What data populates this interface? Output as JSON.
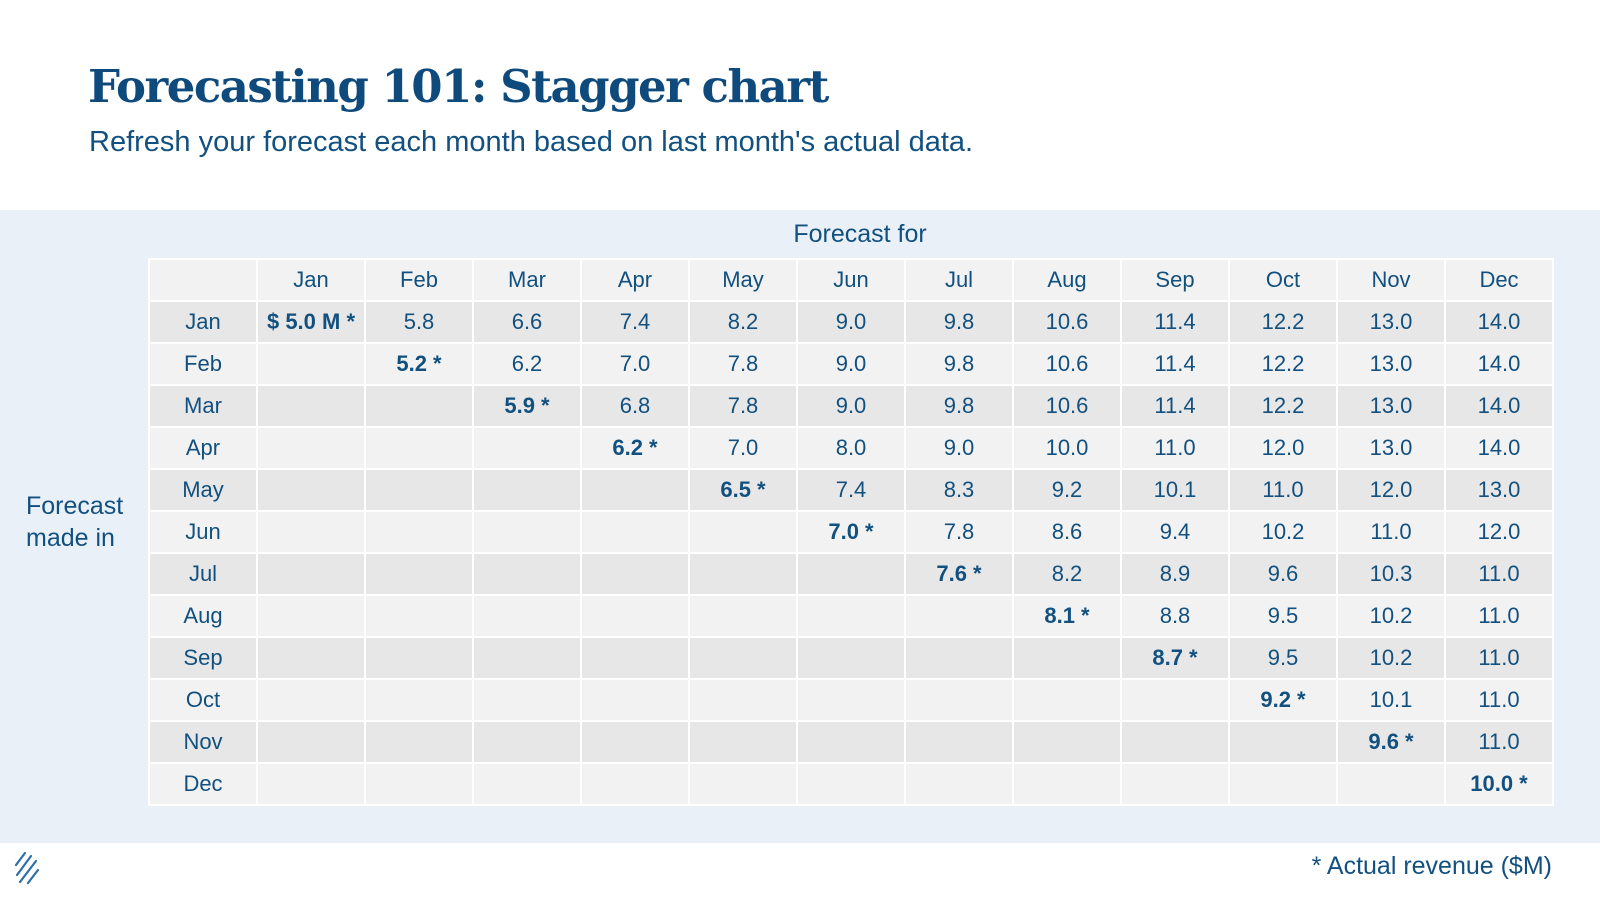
{
  "header": {
    "title": "Forecasting 101: Stagger chart",
    "subtitle": "Refresh your forecast each month based on last month's actual data."
  },
  "labels": {
    "column_axis": "Forecast for",
    "row_axis_line1": "Forecast",
    "row_axis_line2": "made in",
    "footnote": "* Actual revenue ($M)"
  },
  "colors": {
    "primary_text": "#12507f",
    "title": "#0f4a7c",
    "panel_bg": "#e9f0f8",
    "cell_light": "#f2f2f2",
    "cell_dark": "#e7e7e7"
  },
  "chart_data": {
    "type": "table",
    "title": "Forecasting 101: Stagger chart",
    "subtitle": "Refresh your forecast each month based on last month's actual data.",
    "column_header_label": "Forecast for",
    "row_header_label": "Forecast made in",
    "columns": [
      "Jan",
      "Feb",
      "Mar",
      "Apr",
      "May",
      "Jun",
      "Jul",
      "Aug",
      "Sep",
      "Oct",
      "Nov",
      "Dec"
    ],
    "rows": [
      {
        "label": "Jan",
        "cells": [
          "$ 5.0 M *",
          "5.8",
          "6.6",
          "7.4",
          "8.2",
          "9.0",
          "9.8",
          "10.6",
          "11.4",
          "12.2",
          "13.0",
          "14.0"
        ]
      },
      {
        "label": "Feb",
        "cells": [
          "",
          "5.2 *",
          "6.2",
          "7.0",
          "7.8",
          "9.0",
          "9.8",
          "10.6",
          "11.4",
          "12.2",
          "13.0",
          "14.0"
        ]
      },
      {
        "label": "Mar",
        "cells": [
          "",
          "",
          "5.9 *",
          "6.8",
          "7.8",
          "9.0",
          "9.8",
          "10.6",
          "11.4",
          "12.2",
          "13.0",
          "14.0"
        ]
      },
      {
        "label": "Apr",
        "cells": [
          "",
          "",
          "",
          "6.2 *",
          "7.0",
          "8.0",
          "9.0",
          "10.0",
          "11.0",
          "12.0",
          "13.0",
          "14.0"
        ]
      },
      {
        "label": "May",
        "cells": [
          "",
          "",
          "",
          "",
          "6.5 *",
          "7.4",
          "8.3",
          "9.2",
          "10.1",
          "11.0",
          "12.0",
          "13.0"
        ]
      },
      {
        "label": "Jun",
        "cells": [
          "",
          "",
          "",
          "",
          "",
          "7.0 *",
          "7.8",
          "8.6",
          "9.4",
          "10.2",
          "11.0",
          "12.0"
        ]
      },
      {
        "label": "Jul",
        "cells": [
          "",
          "",
          "",
          "",
          "",
          "",
          "7.6 *",
          "8.2",
          "8.9",
          "9.6",
          "10.3",
          "11.0"
        ]
      },
      {
        "label": "Aug",
        "cells": [
          "",
          "",
          "",
          "",
          "",
          "",
          "",
          "8.1 *",
          "8.8",
          "9.5",
          "10.2",
          "11.0"
        ]
      },
      {
        "label": "Sep",
        "cells": [
          "",
          "",
          "",
          "",
          "",
          "",
          "",
          "",
          "8.7 *",
          "9.5",
          "10.2",
          "11.0"
        ]
      },
      {
        "label": "Oct",
        "cells": [
          "",
          "",
          "",
          "",
          "",
          "",
          "",
          "",
          "",
          "9.2 *",
          "10.1",
          "11.0"
        ]
      },
      {
        "label": "Nov",
        "cells": [
          "",
          "",
          "",
          "",
          "",
          "",
          "",
          "",
          "",
          "",
          "9.6 *",
          "11.0"
        ]
      },
      {
        "label": "Dec",
        "cells": [
          "",
          "",
          "",
          "",
          "",
          "",
          "",
          "",
          "",
          "",
          "",
          "10.0 *"
        ]
      }
    ],
    "actual_values": [
      5.0,
      5.2,
      5.9,
      6.2,
      6.5,
      7.0,
      7.6,
      8.1,
      8.7,
      9.2,
      9.6,
      10.0
    ],
    "units": "$M"
  }
}
